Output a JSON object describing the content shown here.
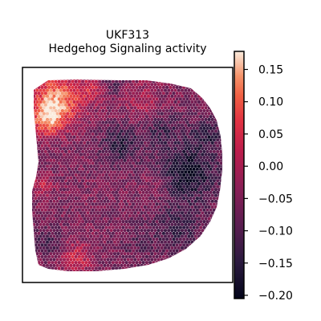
{
  "chart_data": {
    "type": "heatmap",
    "title_lines": [
      "UKF313",
      "Hedgehog Signaling activity"
    ],
    "colorbar": {
      "ticks": [
        "0.15",
        "0.10",
        "0.05",
        "0.00",
        "−0.05",
        "−0.10",
        "−0.15",
        "−0.20"
      ],
      "tick_values": [
        0.15,
        0.1,
        0.05,
        0.0,
        -0.05,
        -0.1,
        -0.15,
        -0.2
      ],
      "range": [
        -0.205,
        0.178
      ],
      "colormap": "rocket"
    },
    "value_range": [
      -0.205,
      0.178
    ],
    "spot_layout": "hexagonal spatial transcriptomics spots, tissue with a large blank hole on the left side",
    "axes_frame": true
  }
}
